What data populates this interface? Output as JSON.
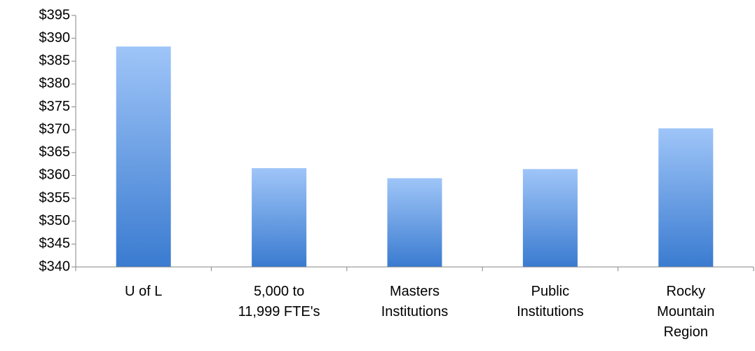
{
  "chart_data": {
    "type": "bar",
    "categories": [
      "U of L",
      "5,000 to\n11,999 FTE's",
      "Masters\nInstitutions",
      "Public\nInstitutions",
      "Rocky\nMountain\nRegion"
    ],
    "values": [
      388.2,
      361.6,
      359.4,
      361.4,
      370.3
    ],
    "colors": [
      "#9fc5f8",
      "#3a7bd0"
    ],
    "ylim": [
      340,
      395
    ],
    "yticks": [
      {
        "value": 340,
        "label": "$340"
      },
      {
        "value": 345,
        "label": "$345"
      },
      {
        "value": 350,
        "label": "$350"
      },
      {
        "value": 355,
        "label": "$355"
      },
      {
        "value": 360,
        "label": "$360"
      },
      {
        "value": 365,
        "label": "$365"
      },
      {
        "value": 370,
        "label": "$370"
      },
      {
        "value": 375,
        "label": "$375"
      },
      {
        "value": 380,
        "label": "$380"
      },
      {
        "value": 385,
        "label": "$385"
      },
      {
        "value": 390,
        "label": "$390"
      },
      {
        "value": 395,
        "label": "$395"
      }
    ],
    "grid": false
  }
}
